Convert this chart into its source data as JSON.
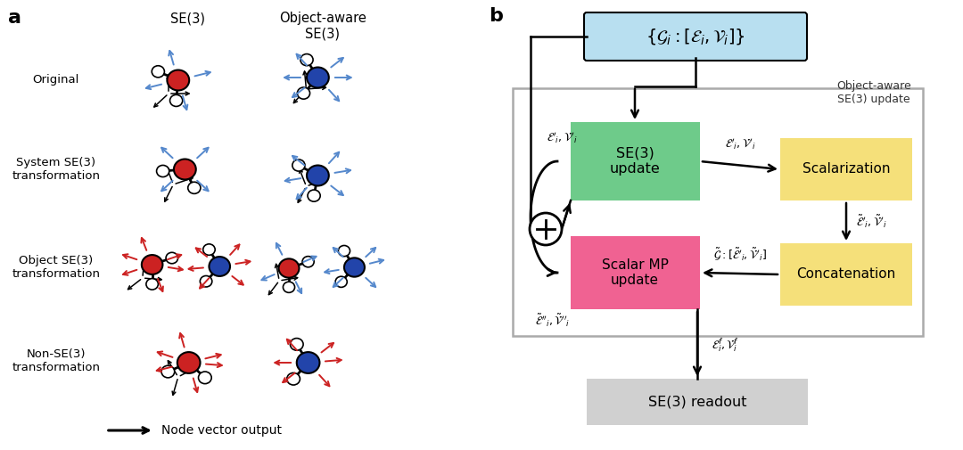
{
  "bg_color": "#ffffff",
  "panel_a_label": "a",
  "panel_b_label": "b",
  "row_labels": [
    "Original",
    "System SE(3)\ntransformation",
    "Object SE(3)\ntransformation",
    "Non-SE(3)\ntransformation"
  ],
  "col_label_se3": "SE(3)",
  "col_label_obj": "Object-aware\nSE(3)",
  "node_vector_label": "Node vector output",
  "top_box_color": "#b8dff0",
  "se3_box_color": "#6ecb8a",
  "se3_box_text": "SE(3)\nupdate",
  "scalar_box_color": "#f06292",
  "scalar_box_text": "Scalar MP\nupdate",
  "scalarization_box_color": "#f5e07a",
  "scalarization_box_text": "Scalarization",
  "concatenation_box_color": "#f5e07a",
  "concatenation_box_text": "Concatenation",
  "readout_box_color": "#d0d0d0",
  "readout_box_text": "SE(3) readout",
  "obj_aware_label": "Object-aware\nSE(3) update",
  "arrow_color": "#000000",
  "blue_arrow_color": "#5588cc",
  "red_arrow_color": "#cc2222"
}
